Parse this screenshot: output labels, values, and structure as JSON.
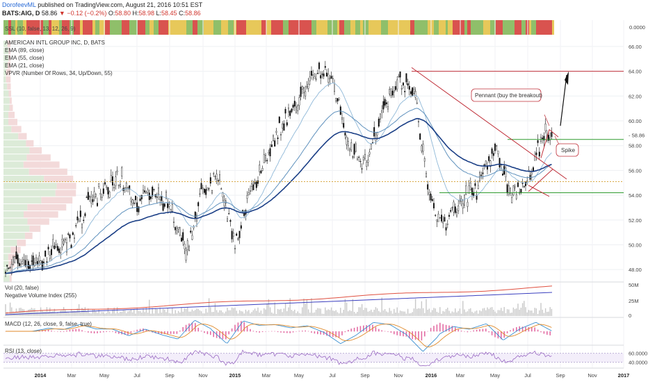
{
  "header": {
    "user": "DorofeevML",
    "published": "published on TradingView.com, August 21, 2016 10:51 EST",
    "symbol": "BATS:AIG, D",
    "last": "58.86",
    "change": "−0.12 (−0.2%)",
    "open_label": "O:",
    "open": "58.80",
    "high_label": "H:",
    "high": "58.98",
    "low_label": "L:",
    "low": "58.45",
    "close_label": "C:",
    "close": "58.86"
  },
  "top_strip": {
    "label": "SSL (10, false, 13, 12, 26, 9)",
    "value": "0.0000",
    "colors": [
      "#d9534f",
      "#8fbf6a",
      "#e7c85a"
    ]
  },
  "main_overlays": [
    "AMERICAN INTL GROUP INC, D, BATS",
    "EMA (89, close)",
    "EMA (55, close)",
    "EMA (21, close)",
    "VPVR (Number Of Rows, 34, Up/Down, 55)"
  ],
  "price_axis": {
    "ticks": [
      "66.00",
      "64.00",
      "62.00",
      "60.00",
      "58.00",
      "56.00",
      "54.00",
      "52.00",
      "50.00",
      "48.00"
    ],
    "current_label": "58.86"
  },
  "volume_panel": {
    "labels": [
      "Vol (20, false)",
      "Negative Volume Index (255)"
    ],
    "ticks": [
      "50M",
      "25M",
      "0"
    ]
  },
  "macd_panel": {
    "label": "MACD (12, 26, close, 9, false, true)"
  },
  "rsi_panel": {
    "label": "RSI (13, close)",
    "ticks": [
      "60.0000",
      "40.0000"
    ]
  },
  "time_axis": [
    "2014",
    "Mar",
    "May",
    "Jul",
    "Sep",
    "Nov",
    "2015",
    "Mar",
    "May",
    "Jul",
    "Sep",
    "Nov",
    "2016",
    "Mar",
    "May",
    "Jul",
    "Sep",
    "Nov",
    "2017"
  ],
  "annotations": {
    "pennant": "Pennant (buy the breakout)",
    "spike": "Spike"
  },
  "colors": {
    "ema_fast": "#8fb8d8",
    "ema_mid": "#5f91bd",
    "ema_slow": "#1b3f86",
    "resistance": "#c0303a",
    "support": "#2e9a2e",
    "volume_bars": "#c8c8c8",
    "macd_hist": "#e36ca3",
    "rsi": "#9b6bc4"
  },
  "chart_data": {
    "type": "line",
    "title": "AMERICAN INTL GROUP INC, D, BATS",
    "x_range": [
      "2014-01",
      "2016-08"
    ],
    "ylim": [
      47,
      66.5
    ],
    "y_right_axis": true,
    "monthly_close": {
      "x": [
        "2014-01",
        "2014-02",
        "2014-03",
        "2014-04",
        "2014-05",
        "2014-06",
        "2014-07",
        "2014-08",
        "2014-09",
        "2014-10",
        "2014-11",
        "2014-12",
        "2015-01",
        "2015-02",
        "2015-03",
        "2015-04",
        "2015-05",
        "2015-06",
        "2015-07",
        "2015-08",
        "2015-09",
        "2015-10",
        "2015-11",
        "2015-12",
        "2016-01",
        "2016-02",
        "2016-03",
        "2016-04",
        "2016-05",
        "2016-06",
        "2016-07",
        "2016-08"
      ],
      "y": [
        48.5,
        49.8,
        50.5,
        53.5,
        54.5,
        55.5,
        53.5,
        54.5,
        53.0,
        49.5,
        54.5,
        55.5,
        50.0,
        54.5,
        57.0,
        60.0,
        61.5,
        64.0,
        63.5,
        58.0,
        56.5,
        60.5,
        63.5,
        62.0,
        53.0,
        51.5,
        53.5,
        54.5,
        58.0,
        54.0,
        55.0,
        59.0
      ]
    },
    "levels": [
      {
        "name": "resistance",
        "value": 64.0
      },
      {
        "name": "support",
        "value": 58.5
      },
      {
        "name": "support",
        "value": 54.2
      },
      {
        "name": "poc",
        "value": 55.1
      }
    ]
  }
}
